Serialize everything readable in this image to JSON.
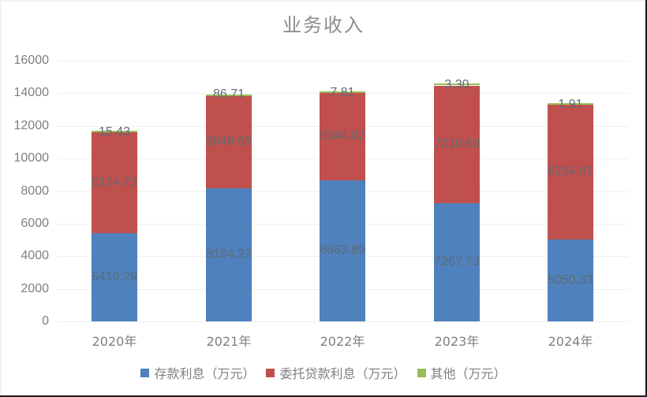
{
  "chart_data": {
    "type": "bar",
    "stacked": true,
    "title": "业务收入",
    "xlabel": "",
    "ylabel": "",
    "categories": [
      "2020年",
      "2021年",
      "2022年",
      "2023年",
      "2024年"
    ],
    "series": [
      {
        "name": "存款利息（万元）",
        "color": "#4f81bd",
        "values": [
          5419.29,
          8184.27,
          8663.89,
          7267.73,
          5050.33
        ]
      },
      {
        "name": "委托贷款利息（万元）",
        "color": "#c0504d",
        "values": [
          6174.73,
          5646.65,
          5344.02,
          7210.6,
          8234.91
        ]
      },
      {
        "name": "其他（万元）",
        "color": "#9bbb59",
        "values": [
          15.43,
          86.71,
          7.81,
          3.3,
          1.91
        ]
      }
    ],
    "ylim": [
      0,
      16000
    ],
    "yticks": [
      0,
      2000,
      4000,
      6000,
      8000,
      10000,
      12000,
      14000,
      16000
    ],
    "grid": true,
    "legend_position": "bottom",
    "data_labels": true
  },
  "labels": {
    "title": "业务收入",
    "yticks": [
      "0",
      "2000",
      "4000",
      "6000",
      "8000",
      "10000",
      "12000",
      "14000",
      "16000"
    ],
    "categories": [
      "2020年",
      "2021年",
      "2022年",
      "2023年",
      "2024年"
    ],
    "legend": [
      "存款利息（万元）",
      "委托贷款利息（万元）",
      "其他（万元）"
    ],
    "bars": [
      {
        "s0": "5419.29",
        "s1": "6174.73",
        "s2": "15.43"
      },
      {
        "s0": "8184.27",
        "s1": "5646.65",
        "s2": "86.71"
      },
      {
        "s0": "8663.89",
        "s1": "5344.02",
        "s2": "7.81"
      },
      {
        "s0": "7267.73",
        "s1": "7210.60",
        "s2": "3.30"
      },
      {
        "s0": "5050.33",
        "s1": "8234.91",
        "s2": "1.91"
      }
    ]
  }
}
